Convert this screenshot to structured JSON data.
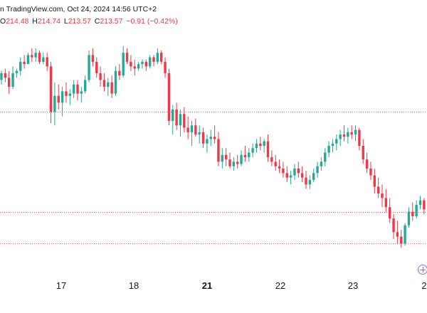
{
  "header": {
    "source_text": "n TradingView.com, Oct 24, 2024 14:56 UTC+2"
  },
  "ohlc": {
    "o_label": "O",
    "o_value": "214.48",
    "h_label": "H",
    "h_value": "214.74",
    "l_label": "L",
    "l_value": "213.57",
    "c_label": "C",
    "c_value": "213.57",
    "change": "−0.91 (−0.42%)"
  },
  "colors": {
    "up": "#22ab94",
    "down": "#f23645",
    "reference_line": "#f23645",
    "grid_line": "#b2b5be",
    "goto_button": "#9c6ade"
  },
  "icons": {
    "goto_realtime": "plus-circle-icon"
  },
  "x_axis": {
    "ticks": [
      {
        "label": "17",
        "bold": false
      },
      {
        "label": "18",
        "bold": false
      },
      {
        "label": "21",
        "bold": true
      },
      {
        "label": "22",
        "bold": false
      },
      {
        "label": "23",
        "bold": false
      },
      {
        "label": "2",
        "bold": false
      }
    ]
  },
  "chart_data": {
    "type": "candlestick",
    "reference_levels": [
      216.8,
      212.4,
      211.0
    ],
    "candles": [
      [
        218.2,
        218.6,
        218.0,
        218.5
      ],
      [
        218.5,
        218.7,
        218.1,
        218.3
      ],
      [
        218.3,
        218.6,
        217.6,
        217.9
      ],
      [
        217.9,
        218.8,
        217.8,
        218.5
      ],
      [
        218.5,
        218.7,
        218.3,
        218.6
      ],
      [
        218.6,
        219.2,
        218.4,
        219.0
      ],
      [
        219.0,
        219.3,
        218.7,
        218.9
      ],
      [
        218.9,
        219.4,
        218.9,
        219.3
      ],
      [
        219.3,
        219.6,
        219.0,
        219.2
      ],
      [
        219.2,
        219.6,
        219.0,
        219.4
      ],
      [
        219.4,
        219.5,
        218.9,
        219.0
      ],
      [
        219.0,
        219.4,
        218.9,
        219.2
      ],
      [
        219.2,
        219.4,
        218.6,
        218.8
      ],
      [
        218.8,
        219.0,
        216.3,
        216.8
      ],
      [
        216.8,
        218.1,
        216.2,
        217.5
      ],
      [
        217.5,
        218.0,
        216.9,
        217.2
      ],
      [
        217.2,
        217.9,
        216.6,
        217.7
      ],
      [
        217.7,
        218.1,
        217.2,
        217.5
      ],
      [
        217.5,
        217.8,
        217.1,
        217.6
      ],
      [
        217.6,
        218.2,
        217.4,
        218.0
      ],
      [
        218.0,
        218.2,
        217.3,
        217.6
      ],
      [
        217.6,
        217.9,
        217.2,
        217.7
      ],
      [
        217.7,
        218.4,
        217.6,
        218.2
      ],
      [
        218.2,
        219.5,
        218.1,
        219.3
      ],
      [
        219.3,
        219.6,
        218.8,
        219.0
      ],
      [
        219.0,
        219.2,
        218.3,
        218.5
      ],
      [
        218.5,
        218.8,
        217.9,
        218.2
      ],
      [
        218.2,
        218.5,
        217.7,
        217.9
      ],
      [
        217.9,
        218.3,
        217.5,
        218.1
      ],
      [
        218.1,
        218.4,
        217.4,
        217.6
      ],
      [
        217.6,
        218.8,
        217.5,
        218.6
      ],
      [
        218.6,
        218.9,
        218.2,
        218.4
      ],
      [
        218.4,
        219.7,
        218.3,
        219.4
      ],
      [
        219.4,
        219.6,
        218.9,
        219.0
      ],
      [
        219.0,
        219.3,
        218.6,
        218.8
      ],
      [
        218.8,
        219.1,
        218.4,
        218.7
      ],
      [
        218.7,
        219.0,
        218.6,
        218.9
      ],
      [
        218.9,
        219.1,
        218.7,
        219.0
      ],
      [
        219.0,
        219.1,
        218.6,
        218.8
      ],
      [
        218.8,
        219.3,
        218.7,
        219.2
      ],
      [
        219.2,
        219.3,
        218.8,
        219.0
      ],
      [
        219.0,
        219.6,
        218.9,
        219.4
      ],
      [
        219.4,
        219.5,
        218.9,
        219.0
      ],
      [
        219.0,
        219.2,
        218.3,
        218.5
      ],
      [
        218.5,
        218.7,
        216.2,
        216.4
      ],
      [
        216.4,
        217.1,
        215.8,
        216.9
      ],
      [
        216.9,
        217.2,
        216.0,
        216.2
      ],
      [
        216.2,
        216.9,
        215.7,
        216.7
      ],
      [
        216.7,
        217.0,
        215.9,
        216.1
      ],
      [
        216.1,
        216.6,
        215.6,
        215.9
      ],
      [
        215.9,
        216.4,
        215.3,
        216.2
      ],
      [
        216.2,
        216.5,
        215.7,
        215.8
      ],
      [
        215.8,
        216.2,
        215.4,
        215.9
      ],
      [
        215.9,
        216.1,
        215.2,
        215.4
      ],
      [
        215.4,
        215.8,
        215.0,
        215.6
      ],
      [
        215.6,
        216.0,
        215.3,
        215.7
      ],
      [
        215.7,
        216.2,
        215.4,
        215.6
      ],
      [
        215.6,
        215.9,
        214.4,
        214.6
      ],
      [
        214.6,
        215.2,
        214.3,
        214.9
      ],
      [
        214.9,
        215.2,
        214.4,
        214.7
      ],
      [
        214.7,
        215.0,
        214.3,
        214.4
      ],
      [
        214.4,
        214.8,
        214.2,
        214.6
      ],
      [
        214.6,
        214.9,
        214.3,
        214.5
      ],
      [
        214.5,
        215.1,
        214.4,
        214.9
      ],
      [
        214.9,
        215.3,
        214.6,
        214.8
      ],
      [
        214.8,
        215.2,
        214.6,
        215.0
      ],
      [
        215.0,
        215.4,
        214.8,
        215.2
      ],
      [
        215.2,
        215.6,
        215.0,
        215.4
      ],
      [
        215.4,
        215.7,
        215.1,
        215.3
      ],
      [
        215.3,
        215.6,
        215.0,
        215.5
      ],
      [
        215.5,
        215.8,
        214.6,
        214.8
      ],
      [
        214.8,
        215.1,
        214.4,
        214.6
      ],
      [
        214.6,
        214.9,
        214.2,
        214.4
      ],
      [
        214.4,
        214.7,
        214.1,
        214.3
      ],
      [
        214.3,
        214.6,
        213.9,
        214.1
      ],
      [
        214.1,
        214.4,
        213.7,
        213.9
      ],
      [
        213.9,
        214.2,
        213.6,
        214.0
      ],
      [
        214.0,
        214.5,
        213.8,
        214.3
      ],
      [
        214.3,
        214.6,
        213.9,
        214.1
      ],
      [
        214.1,
        214.4,
        213.7,
        213.9
      ],
      [
        213.9,
        214.2,
        213.4,
        213.6
      ],
      [
        213.6,
        214.0,
        213.4,
        213.8
      ],
      [
        213.8,
        214.3,
        213.7,
        214.1
      ],
      [
        214.1,
        214.6,
        213.9,
        214.4
      ],
      [
        214.4,
        214.8,
        214.2,
        214.6
      ],
      [
        214.6,
        215.2,
        214.4,
        215.0
      ],
      [
        215.0,
        215.5,
        214.8,
        215.3
      ],
      [
        215.3,
        215.6,
        215.0,
        215.4
      ],
      [
        215.4,
        215.8,
        215.1,
        215.6
      ],
      [
        215.6,
        216.0,
        215.3,
        215.8
      ],
      [
        215.8,
        216.2,
        215.5,
        215.7
      ],
      [
        215.7,
        216.1,
        215.4,
        215.9
      ],
      [
        215.9,
        216.2,
        215.6,
        215.8
      ],
      [
        215.8,
        216.2,
        215.5,
        216.0
      ],
      [
        216.0,
        216.1,
        215.1,
        215.3
      ],
      [
        215.3,
        215.6,
        214.5,
        214.7
      ],
      [
        214.7,
        215.0,
        214.1,
        214.3
      ],
      [
        214.3,
        214.6,
        213.8,
        214.0
      ],
      [
        214.0,
        214.3,
        213.2,
        213.5
      ],
      [
        213.5,
        213.9,
        213.0,
        213.2
      ],
      [
        213.2,
        213.6,
        212.6,
        213.0
      ],
      [
        213.0,
        213.4,
        212.4,
        212.6
      ],
      [
        212.6,
        213.0,
        211.9,
        212.1
      ],
      [
        212.1,
        212.3,
        211.2,
        211.5
      ],
      [
        211.5,
        212.0,
        211.0,
        211.3
      ],
      [
        211.3,
        211.6,
        210.8,
        211.0
      ],
      [
        211.0,
        211.9,
        210.9,
        211.8
      ],
      [
        211.8,
        212.6,
        211.7,
        212.4
      ],
      [
        212.4,
        212.8,
        212.0,
        212.2
      ],
      [
        212.2,
        212.9,
        212.1,
        212.7
      ],
      [
        212.7,
        213.1,
        212.5,
        212.9
      ],
      [
        212.9,
        213.0,
        212.3,
        212.5
      ]
    ]
  }
}
